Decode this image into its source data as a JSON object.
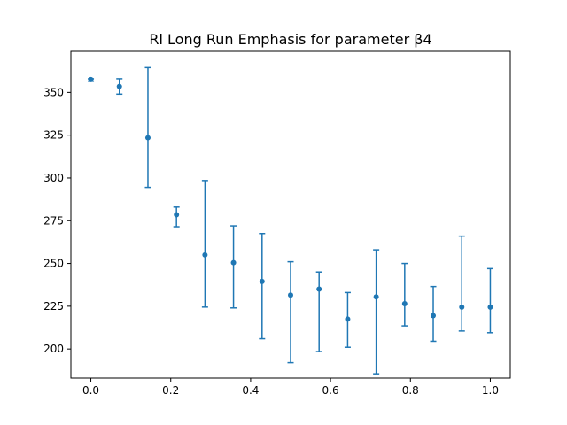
{
  "chart_data": {
    "type": "scatter",
    "title": "Rl Long Run Emphasis for parameter β4",
    "xlabel": "",
    "ylabel": "",
    "xlim": [
      -0.05,
      1.05
    ],
    "ylim": [
      183,
      374
    ],
    "xticks": [
      0.0,
      0.2,
      0.4,
      0.6,
      0.8,
      1.0
    ],
    "xtick_labels": [
      "0.0",
      "0.2",
      "0.4",
      "0.6",
      "0.8",
      "1.0"
    ],
    "yticks": [
      200,
      225,
      250,
      275,
      300,
      325,
      350
    ],
    "ytick_labels": [
      "200",
      "225",
      "250",
      "275",
      "300",
      "325",
      "350"
    ],
    "grid": false,
    "color": "#1f77b4",
    "series": [
      {
        "points": [
          {
            "x": 0.0,
            "y": 357.5,
            "low": 356.5,
            "high": 358.0
          },
          {
            "x": 0.0714,
            "y": 353.5,
            "low": 349.0,
            "high": 358.0
          },
          {
            "x": 0.1429,
            "y": 323.5,
            "low": 294.5,
            "high": 364.5
          },
          {
            "x": 0.2143,
            "y": 278.5,
            "low": 271.5,
            "high": 283.0
          },
          {
            "x": 0.2857,
            "y": 255.0,
            "low": 224.5,
            "high": 298.5
          },
          {
            "x": 0.3571,
            "y": 250.5,
            "low": 224.0,
            "high": 272.0
          },
          {
            "x": 0.4286,
            "y": 239.5,
            "low": 206.0,
            "high": 267.5
          },
          {
            "x": 0.5,
            "y": 231.5,
            "low": 192.0,
            "high": 251.0
          },
          {
            "x": 0.5714,
            "y": 235.0,
            "low": 198.5,
            "high": 245.0
          },
          {
            "x": 0.6429,
            "y": 217.5,
            "low": 201.0,
            "high": 233.0
          },
          {
            "x": 0.7143,
            "y": 230.5,
            "low": 185.5,
            "high": 258.0
          },
          {
            "x": 0.7857,
            "y": 226.5,
            "low": 213.5,
            "high": 250.0
          },
          {
            "x": 0.8571,
            "y": 219.5,
            "low": 204.5,
            "high": 236.5
          },
          {
            "x": 0.9286,
            "y": 224.5,
            "low": 210.5,
            "high": 266.0
          },
          {
            "x": 1.0,
            "y": 224.5,
            "low": 209.5,
            "high": 247.0
          }
        ]
      }
    ]
  }
}
